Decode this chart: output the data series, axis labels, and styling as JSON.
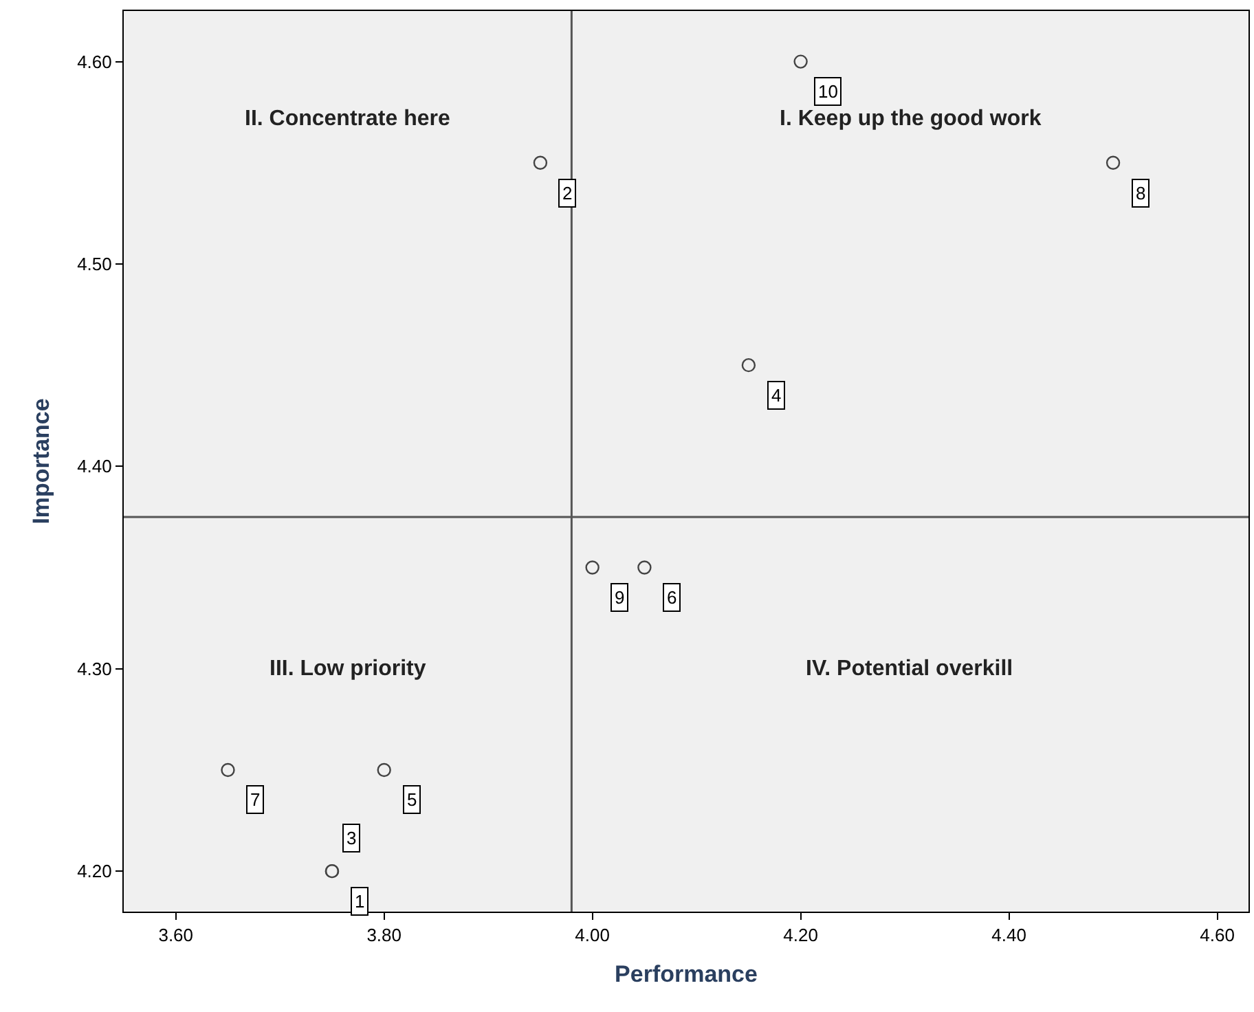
{
  "chart_data": {
    "type": "scatter",
    "xlabel": "Performance",
    "ylabel": "Importance",
    "x": [
      3.75,
      3.95,
      3.75,
      4.15,
      3.8,
      4.05,
      3.65,
      4.5,
      4.0,
      4.2
    ],
    "series": [
      {
        "color": "#444444",
        "values": [
          4.2,
          4.55,
          4.2,
          4.45,
          4.25,
          4.35,
          4.25,
          4.55,
          4.35,
          4.6
        ]
      }
    ],
    "marker": "circle",
    "grid": false,
    "xlim": [
      3.55,
      4.63
    ],
    "xticks": [
      {
        "value": 3.6,
        "label": "3.60"
      },
      {
        "value": 3.8,
        "label": "3.80"
      },
      {
        "value": 4.0,
        "label": "4.00"
      },
      {
        "value": 4.2,
        "label": "4.20"
      },
      {
        "value": 4.4,
        "label": "4.40"
      },
      {
        "value": 4.6,
        "label": "4.60"
      }
    ],
    "ylim": [
      4.18,
      4.625
    ],
    "yticks": [
      {
        "value": 4.2,
        "label": "4.20"
      },
      {
        "value": 4.3,
        "label": "4.30"
      },
      {
        "value": 4.4,
        "label": "4.40"
      },
      {
        "value": 4.5,
        "label": "4.50"
      },
      {
        "value": 4.6,
        "label": "4.60"
      }
    ],
    "ref_lines": [
      {
        "axis": "x",
        "value": 3.98,
        "color": "#555555"
      },
      {
        "axis": "y",
        "value": 4.375,
        "color": "#555555"
      }
    ],
    "annotations": [
      {
        "text": "1",
        "x": 3.75,
        "y": 4.2
      },
      {
        "text": "2",
        "x": 3.95,
        "y": 4.55
      },
      {
        "text": "3",
        "x": 3.75,
        "y": 4.2
      },
      {
        "text": "4",
        "x": 4.15,
        "y": 4.45
      },
      {
        "text": "5",
        "x": 3.8,
        "y": 4.25
      },
      {
        "text": "6",
        "x": 4.05,
        "y": 4.35
      },
      {
        "text": "7",
        "x": 3.65,
        "y": 4.25
      },
      {
        "text": "8",
        "x": 4.5,
        "y": 4.55
      },
      {
        "text": "9",
        "x": 4.0,
        "y": 4.35
      },
      {
        "text": "10",
        "x": 4.2,
        "y": 4.6
      },
      "I. Keep up the good work",
      "II. Concentrate here",
      "III. Low priority",
      "IV. Potential overkill"
    ]
  }
}
